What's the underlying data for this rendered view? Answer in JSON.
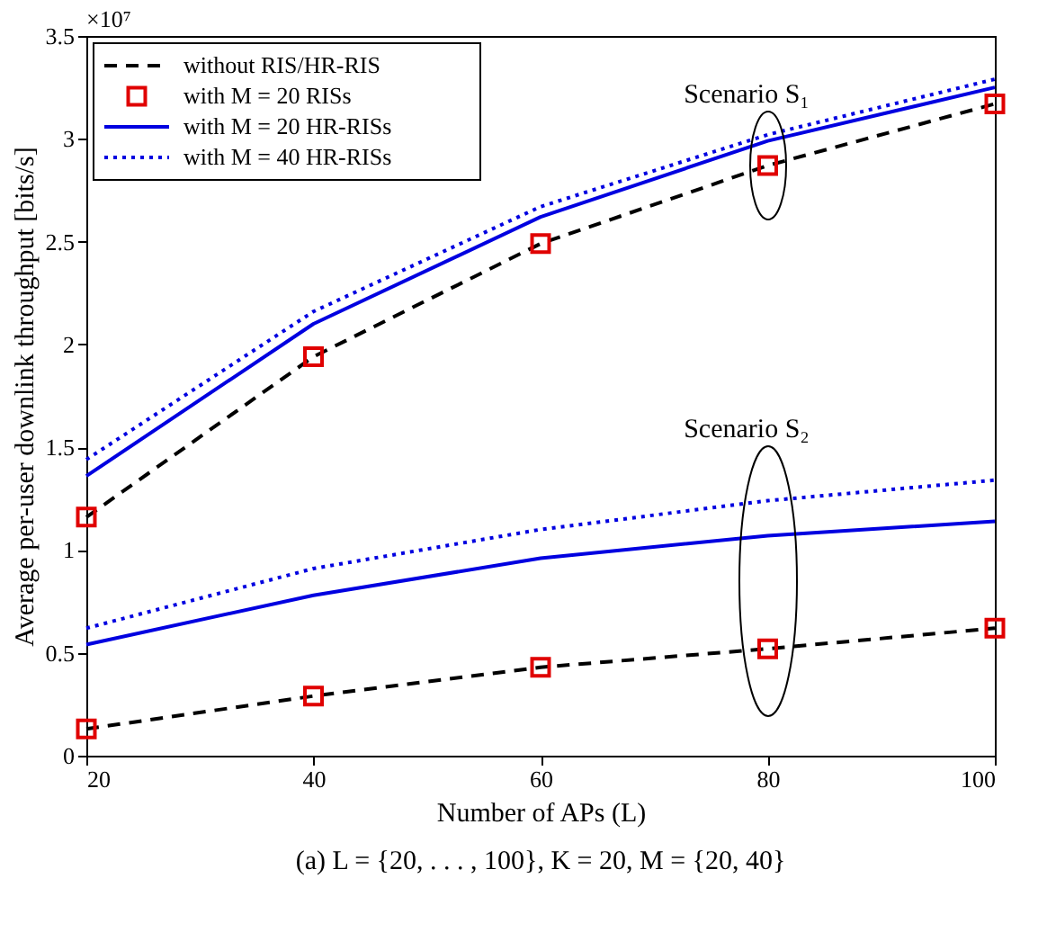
{
  "chart_data": {
    "type": "line",
    "xlabel": "Number of APs (L)",
    "ylabel": "Average per-user downlink throughput [bits/s]",
    "x": [
      20,
      40,
      60,
      80,
      100
    ],
    "series": [
      {
        "name": "without RIS/HR-RIS",
        "color": "#000000",
        "line_style": "dashed",
        "values": [
          1.16,
          1.94,
          2.49,
          2.87,
          3.17
        ]
      },
      {
        "name": "with M = 20 RISs",
        "type": "scatter",
        "marker": "square",
        "color": "#e00000",
        "values": [
          1.16,
          1.94,
          2.49,
          2.87,
          3.17
        ]
      },
      {
        "name": "with M = 20 HR-RISs",
        "color": "#0000e0",
        "line_style": "solid",
        "values": [
          1.36,
          2.1,
          2.62,
          2.99,
          3.25
        ]
      },
      {
        "name": "with M = 40 HR-RISs",
        "color": "#0000e0",
        "line_style": "dotted",
        "values": [
          1.44,
          2.16,
          2.67,
          3.02,
          3.29
        ]
      },
      {
        "color": "#000000",
        "line_style": "dashed",
        "values": [
          0.13,
          0.29,
          0.43,
          0.52,
          0.62
        ]
      },
      {
        "type": "scatter",
        "marker": "square",
        "color": "#e00000",
        "values": [
          0.13,
          0.29,
          0.43,
          0.52,
          0.62
        ]
      },
      {
        "color": "#0000e0",
        "line_style": "solid",
        "values": [
          0.54,
          0.78,
          0.96,
          1.07,
          1.14
        ]
      },
      {
        "color": "#0000e0",
        "line_style": "dotted",
        "values": [
          0.62,
          0.91,
          1.1,
          1.24,
          1.34
        ]
      }
    ],
    "xlim": [
      20,
      100
    ],
    "xticks": [
      20,
      40,
      60,
      80,
      100
    ],
    "ylim": [
      0,
      3.5
    ],
    "yticks": [
      0,
      0.5,
      1,
      1.5,
      2,
      2.5,
      3,
      3.5
    ],
    "grid": false,
    "legend": "top left",
    "marker": "none",
    "annotations": [
      "×10⁷",
      "(a)  L = {20, . . . , 100}, K = 20, M = {20, 40}",
      "Scenario S₁",
      "Scenario S₂"
    ]
  }
}
